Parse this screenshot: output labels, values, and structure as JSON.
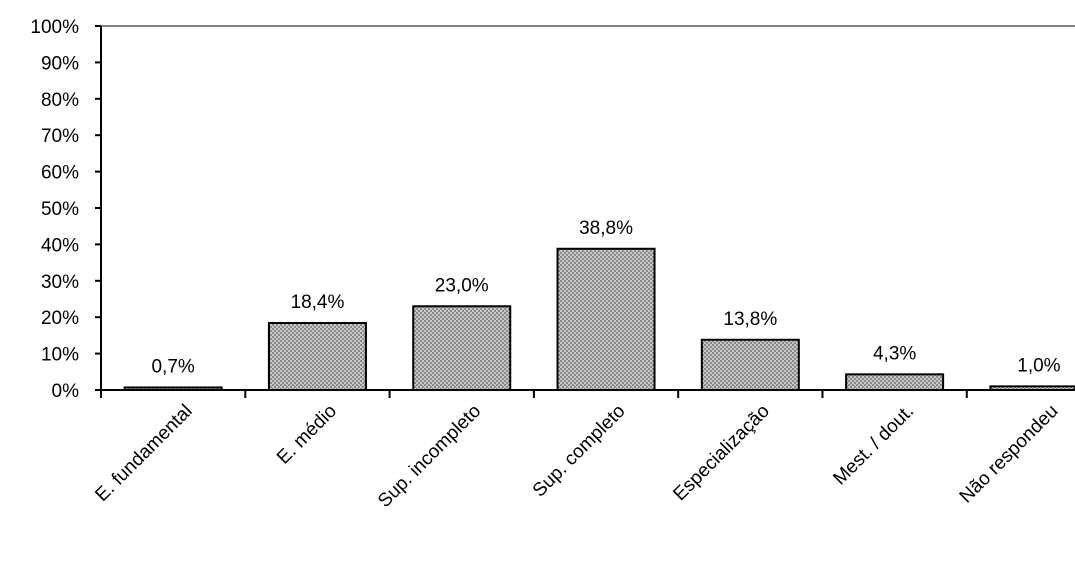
{
  "chart_data": {
    "type": "bar",
    "categories": [
      "E. fundamental",
      "E. médio",
      "Sup. incompleto",
      "Sup. completo",
      "Especialização",
      "Mest. / dout.",
      "Não respondeu"
    ],
    "values": [
      0.7,
      18.4,
      23.0,
      38.8,
      13.8,
      4.3,
      1.0
    ],
    "data_labels": [
      "0,7%",
      "18,4%",
      "23,0%",
      "38,8%",
      "13,8%",
      "4,3%",
      "1,0%"
    ],
    "yticks": [
      "0%",
      "10%",
      "20%",
      "30%",
      "40%",
      "50%",
      "60%",
      "70%",
      "80%",
      "90%",
      "100%"
    ],
    "ylim": [
      0,
      100
    ],
    "grid": false,
    "legend": "none",
    "colors": {
      "bar_fill": "#b8b8b8",
      "bar_pattern": "#8a8a8a",
      "bar_edge": "#000000",
      "axis": "#000000",
      "top_border": "#808080"
    }
  }
}
